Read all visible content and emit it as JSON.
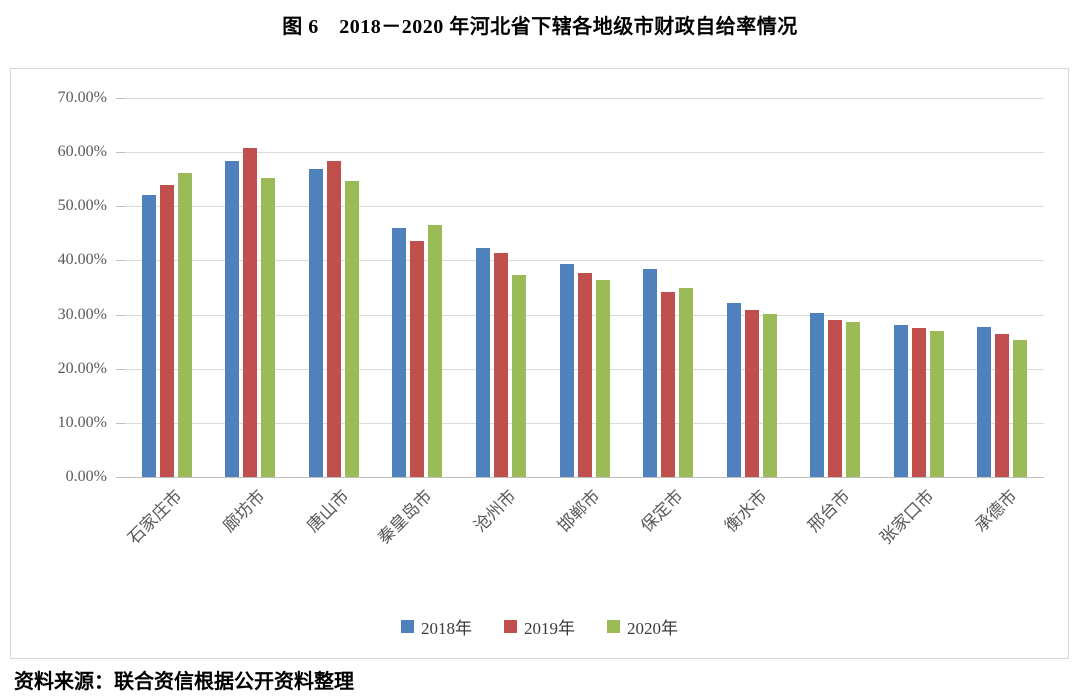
{
  "page": {
    "title": "图 6　2018－2020 年河北省下辖各地级市财政自给率情况",
    "source_note": "资料来源：联合资信根据公开资料整理"
  },
  "chart_data": {
    "type": "bar",
    "title": "图 6　2018－2020 年河北省下辖各地级市财政自给率情况",
    "categories": [
      "石家庄市",
      "廊坊市",
      "唐山市",
      "秦皇岛市",
      "沧州市",
      "邯郸市",
      "保定市",
      "衡水市",
      "邢台市",
      "张家口市",
      "承德市"
    ],
    "series": [
      {
        "name": "2018年",
        "color": "#4F81BD",
        "values": [
          52.0,
          58.4,
          56.9,
          45.9,
          42.3,
          39.4,
          38.4,
          32.1,
          30.3,
          28.0,
          27.7
        ]
      },
      {
        "name": "2019年",
        "color": "#C0504D",
        "values": [
          54.0,
          60.7,
          58.4,
          43.5,
          41.3,
          37.7,
          34.2,
          30.9,
          29.0,
          27.5,
          26.5
        ]
      },
      {
        "name": "2020年",
        "color": "#9BBB59",
        "values": [
          56.2,
          55.2,
          54.7,
          46.5,
          37.4,
          36.4,
          35.0,
          30.2,
          28.7,
          27.0,
          25.3
        ]
      }
    ],
    "ylim": [
      0,
      70
    ],
    "y_ticks": [
      {
        "value": 0,
        "label": "0.00%"
      },
      {
        "value": 10,
        "label": "10.00%"
      },
      {
        "value": 20,
        "label": "20.00%"
      },
      {
        "value": 30,
        "label": "30.00%"
      },
      {
        "value": 40,
        "label": "40.00%"
      },
      {
        "value": 50,
        "label": "50.00%"
      },
      {
        "value": 60,
        "label": "60.00%"
      },
      {
        "value": 70,
        "label": "70.00%"
      }
    ],
    "xlabel": "",
    "ylabel": "",
    "grid": true,
    "x_label_rotation_deg": 45,
    "legend_position": "bottom"
  },
  "colors": {
    "series_2018": "#4F81BD",
    "series_2019": "#C0504D",
    "series_2020": "#9BBB59",
    "gridline": "#dcdcdc",
    "axis_line": "#bfbfbf",
    "axis_text": "#595959",
    "frame_border": "#d6d6d6"
  }
}
